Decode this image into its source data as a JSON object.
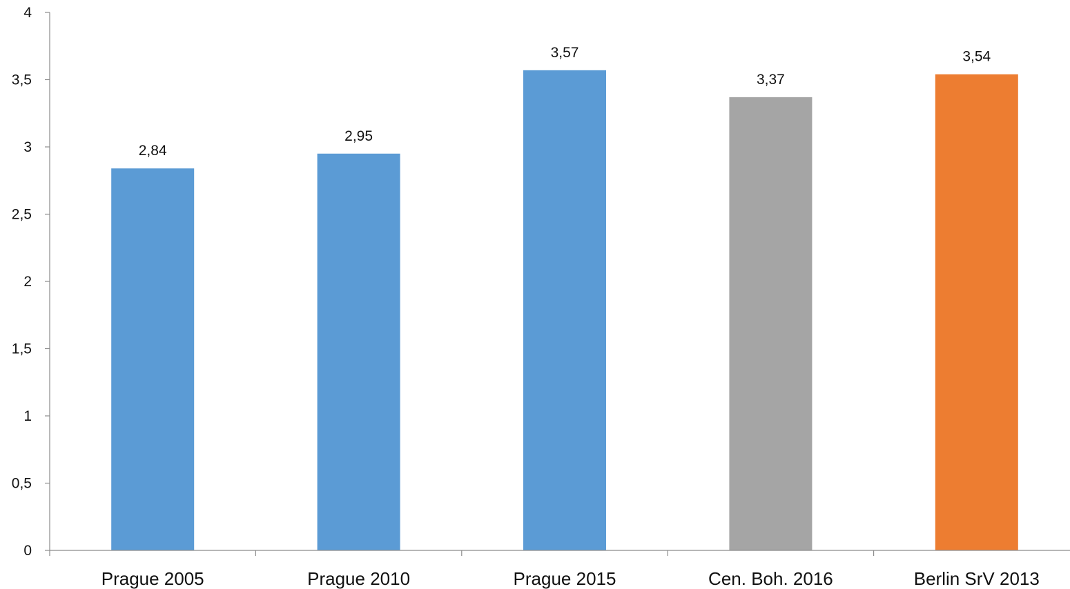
{
  "chart_data": {
    "type": "bar",
    "categories": [
      "Prague 2005",
      "Prague 2010",
      "Prague 2015",
      "Cen. Boh. 2016",
      "Berlin SrV 2013"
    ],
    "values": [
      2.84,
      2.95,
      3.57,
      3.37,
      3.54
    ],
    "value_labels": [
      "2,84",
      "2,95",
      "3,57",
      "3,37",
      "3,54"
    ],
    "bar_colors": [
      "#5b9bd5",
      "#5b9bd5",
      "#5b9bd5",
      "#a5a5a5",
      "#ed7d31"
    ],
    "ylim": [
      0,
      4
    ],
    "y_ticks": [
      0,
      0.5,
      1,
      1.5,
      2,
      2.5,
      3,
      3.5,
      4
    ],
    "y_tick_labels": [
      "0",
      "0,5",
      "1",
      "1,5",
      "2",
      "2,5",
      "3",
      "3,5",
      "4"
    ],
    "grid": false,
    "legend": "none"
  }
}
